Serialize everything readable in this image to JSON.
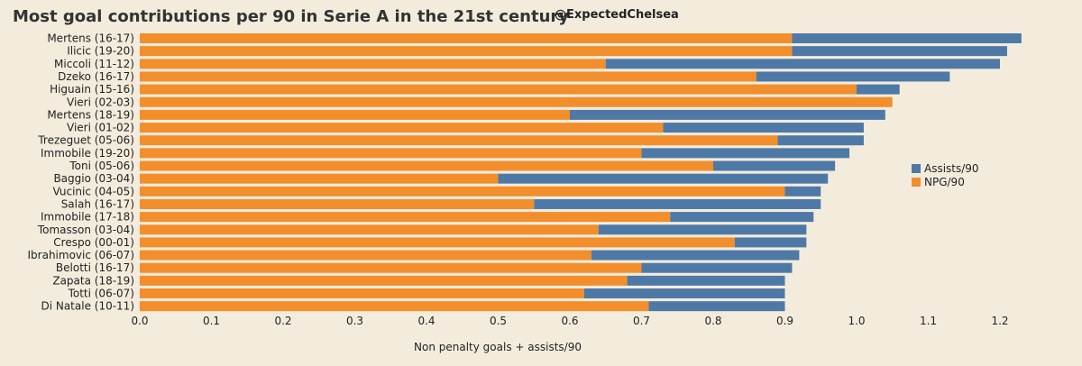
{
  "chart_data": {
    "type": "bar",
    "orientation": "horizontal",
    "stacked": true,
    "title": "Most goal contributions per 90 in Serie A in the 21st century",
    "credit": "@ExpectedChelsea",
    "xlabel": "Non penalty goals + assists/90",
    "ylabel": "",
    "xlim": [
      0,
      1.25
    ],
    "xticks": [
      "0.0",
      "0.1",
      "0.2",
      "0.3",
      "0.4",
      "0.5",
      "0.6",
      "0.7",
      "0.8",
      "0.9",
      "1.0",
      "1.1",
      "1.2"
    ],
    "legend_position": "right",
    "categories": [
      "Mertens (16-17)",
      "Ilicic (19-20)",
      "Miccoli (11-12)",
      "Dzeko (16-17)",
      "Higuain (15-16)",
      "Vieri (02-03)",
      "Mertens (18-19)",
      "Vieri (01-02)",
      "Trezeguet (05-06)",
      "Immobile (19-20)",
      "Toni (05-06)",
      "Baggio (03-04)",
      "Vucinic (04-05)",
      "Salah (16-17)",
      "Immobile (17-18)",
      "Tomasson (03-04)",
      "Crespo (00-01)",
      "Ibrahimovic (06-07)",
      "Belotti (16-17)",
      "Zapata (18-19)",
      "Totti (06-07)",
      "Di Natale (10-11)"
    ],
    "series": [
      {
        "name": "NPG/90",
        "color": "#f28e2b",
        "values": [
          0.91,
          0.91,
          0.65,
          0.86,
          1.0,
          1.05,
          0.6,
          0.73,
          0.89,
          0.7,
          0.8,
          0.5,
          0.9,
          0.55,
          0.74,
          0.64,
          0.83,
          0.63,
          0.7,
          0.68,
          0.62,
          0.71
        ]
      },
      {
        "name": "Assists/90",
        "color": "#4e79a7",
        "values": [
          0.32,
          0.3,
          0.55,
          0.27,
          0.06,
          0.0,
          0.44,
          0.28,
          0.12,
          0.29,
          0.17,
          0.46,
          0.05,
          0.4,
          0.2,
          0.29,
          0.1,
          0.29,
          0.21,
          0.22,
          0.28,
          0.19
        ]
      }
    ],
    "legend": [
      "Assists/90",
      "NPG/90"
    ]
  }
}
